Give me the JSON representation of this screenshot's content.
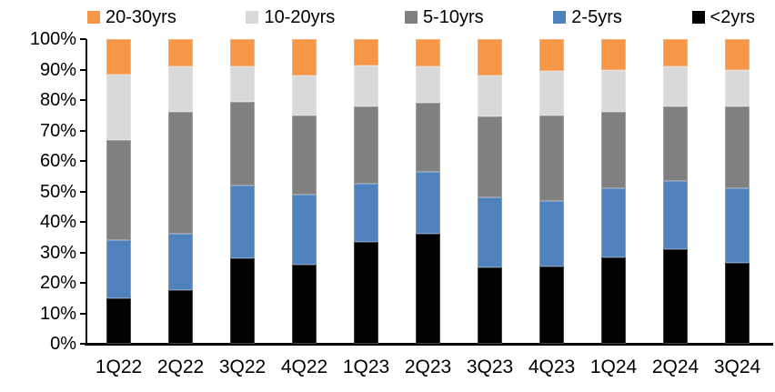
{
  "legend": [
    {
      "label": "20-30yrs",
      "color": "#F79646"
    },
    {
      "label": "10-20yrs",
      "color": "#D9D9D9"
    },
    {
      "label": "5-10yrs",
      "color": "#808080"
    },
    {
      "label": "2-5yrs",
      "color": "#4F81BD"
    },
    {
      "label": "<2yrs",
      "color": "#000000"
    }
  ],
  "y_axis": {
    "tick_labels": [
      "100%",
      "90%",
      "80%",
      "70%",
      "60%",
      "50%",
      "40%",
      "30%",
      "20%",
      "10%",
      "0%"
    ]
  },
  "chart_data": {
    "type": "bar",
    "stacked": true,
    "percent_stacked": true,
    "title": "",
    "xlabel": "",
    "ylabel": "",
    "ylim": [
      0,
      100
    ],
    "grid": false,
    "legend_position": "top",
    "categories": [
      "1Q22",
      "2Q22",
      "3Q22",
      "4Q22",
      "1Q23",
      "2Q23",
      "3Q23",
      "4Q23",
      "1Q24",
      "2Q24",
      "3Q24"
    ],
    "series": [
      {
        "name": "<2yrs",
        "color": "#000000",
        "values": [
          15.0,
          17.5,
          28.0,
          26.0,
          33.5,
          36.0,
          25.0,
          25.5,
          28.5,
          31.0,
          26.5
        ]
      },
      {
        "name": "2-5yrs",
        "color": "#4F81BD",
        "values": [
          19.0,
          18.5,
          24.0,
          23.0,
          19.0,
          20.5,
          23.0,
          21.5,
          22.5,
          22.5,
          24.5
        ]
      },
      {
        "name": "5-10yrs",
        "color": "#808080",
        "values": [
          33.0,
          40.0,
          27.5,
          26.0,
          25.5,
          22.5,
          26.5,
          28.0,
          25.0,
          24.5,
          27.0
        ]
      },
      {
        "name": "10-20yrs",
        "color": "#D9D9D9",
        "values": [
          21.5,
          15.0,
          11.5,
          13.0,
          13.5,
          12.0,
          13.5,
          14.5,
          14.0,
          13.0,
          12.0
        ]
      },
      {
        "name": "20-30yrs",
        "color": "#F79646",
        "values": [
          11.5,
          9.0,
          9.0,
          12.0,
          8.5,
          9.0,
          12.0,
          10.5,
          10.0,
          9.0,
          10.0
        ]
      }
    ]
  }
}
